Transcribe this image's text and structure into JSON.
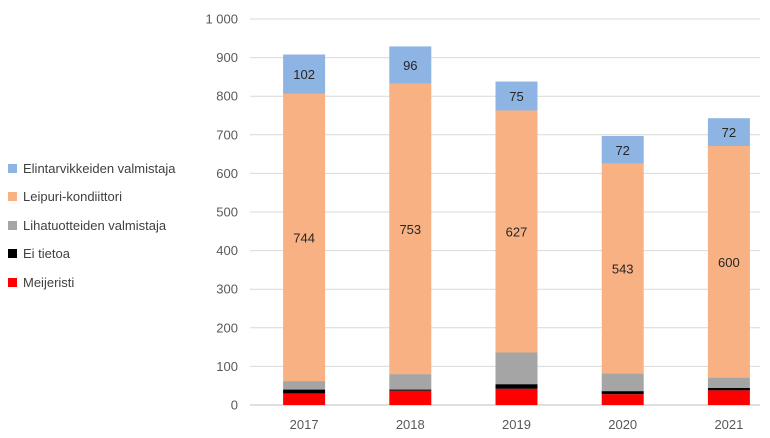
{
  "chart_data": {
    "type": "bar",
    "stacked": true,
    "categories": [
      "2017",
      "2018",
      "2019",
      "2020",
      "2021"
    ],
    "ylim": [
      0,
      1000
    ],
    "yticks": [
      0,
      100,
      200,
      300,
      400,
      500,
      600,
      700,
      800,
      900,
      1000
    ],
    "ytick_labels": [
      "0",
      "100",
      "200",
      "300",
      "400",
      "500",
      "600",
      "700",
      "800",
      "900",
      "1 000"
    ],
    "grid": true,
    "legend_position": "left",
    "series": [
      {
        "name": "Meijeristi",
        "color": "#ff0000",
        "values": [
          30,
          37,
          42,
          28,
          38
        ],
        "show_labels": false
      },
      {
        "name": "Ei tietoa",
        "color": "#000000",
        "values": [
          10,
          3,
          12,
          8,
          6
        ],
        "show_labels": false
      },
      {
        "name": "Lihatuotteiden valmistaja",
        "color": "#a5a5a5",
        "values": [
          22,
          40,
          82,
          46,
          27
        ],
        "show_labels": false
      },
      {
        "name": "Leipuri-kondiittori",
        "color": "#f8b183",
        "values": [
          744,
          753,
          627,
          543,
          600
        ],
        "show_labels": true
      },
      {
        "name": "Elintarvikkeiden valmistaja",
        "color": "#8db4e2",
        "values": [
          102,
          96,
          75,
          72,
          72
        ],
        "show_labels": true
      }
    ],
    "legend_order": [
      "Elintarvikkeiden valmistaja",
      "Leipuri-kondiittori",
      "Lihatuotteiden valmistaja",
      "Ei tietoa",
      "Meijeristi"
    ]
  }
}
